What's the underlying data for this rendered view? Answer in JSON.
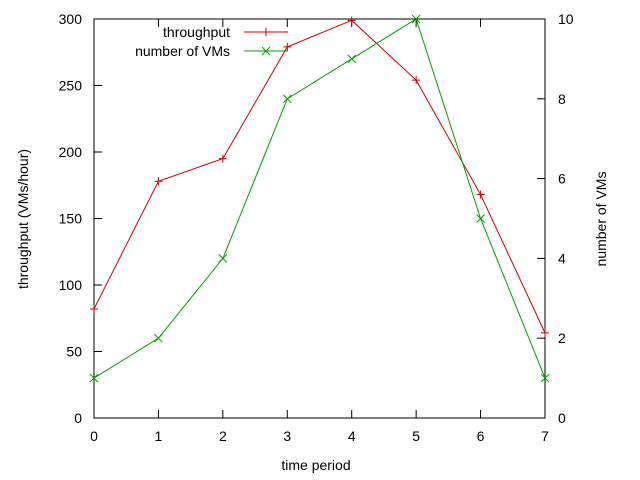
{
  "chart_data": {
    "type": "line",
    "xlabel": "time period",
    "ylabel_left": "throughput (VMs/hour)",
    "ylabel_right": "number of VMs",
    "xlim": [
      0,
      7
    ],
    "ylim_left": [
      0,
      300
    ],
    "ylim_right": [
      0,
      10
    ],
    "x_ticks": [
      "0",
      "1",
      "2",
      "3",
      "4",
      "5",
      "6",
      "7"
    ],
    "y_left_ticks": [
      "0",
      "50",
      "100",
      "150",
      "200",
      "250",
      "300"
    ],
    "y_right_ticks": [
      "0",
      "2",
      "4",
      "6",
      "8",
      "10"
    ],
    "grid": false,
    "legend_position": "top-center",
    "series": [
      {
        "name": "throughput",
        "axis": "left",
        "color": "#cc0000",
        "marker": "plus",
        "x": [
          0,
          1,
          2,
          3,
          4,
          5,
          6,
          7
        ],
        "values": [
          82,
          178,
          195,
          279,
          299,
          254,
          168,
          64
        ]
      },
      {
        "name": "number of VMs",
        "axis": "right",
        "color": "#00a000",
        "marker": "cross",
        "x": [
          0,
          1,
          2,
          3,
          4,
          5,
          6,
          7
        ],
        "values": [
          1,
          2,
          4,
          8,
          9,
          10,
          5,
          1
        ]
      }
    ]
  }
}
